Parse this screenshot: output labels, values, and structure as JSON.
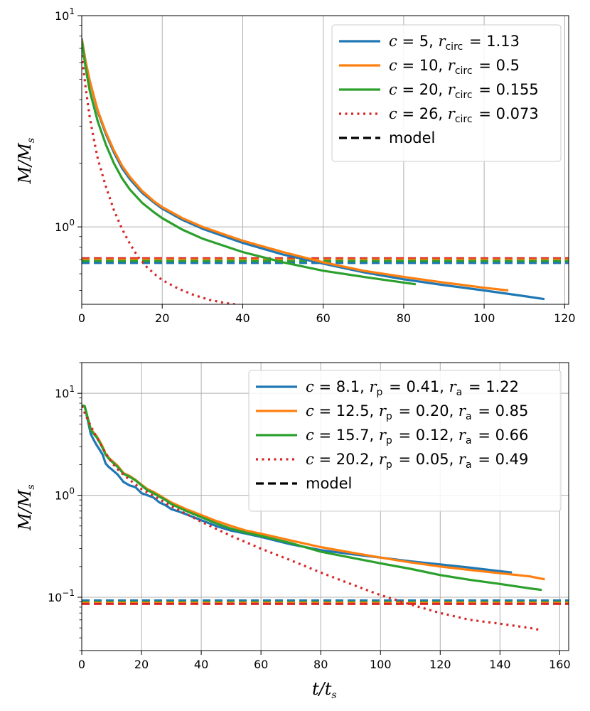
{
  "chart_data": [
    {
      "type": "line",
      "yscale": "log",
      "xlim": [
        0,
        121
      ],
      "ylim": [
        0.43,
        10
      ],
      "x_ticks": [
        0,
        20,
        40,
        60,
        80,
        100,
        120
      ],
      "y_ticks": [
        {
          "value": 1,
          "label": "10^0"
        },
        {
          "value": 10,
          "label": "10^1"
        }
      ],
      "xlabel": "",
      "ylabel": "M/M_s",
      "grid": true,
      "legend_position": "top-right",
      "series": [
        {
          "name": "c = 5, r_circ = 1.13",
          "color": "#1f77b4",
          "style": "solid",
          "x": [
            0,
            1,
            2,
            4,
            6,
            8,
            10,
            12,
            15,
            18,
            20,
            25,
            30,
            40,
            50,
            60,
            70,
            80,
            90,
            100,
            105,
            110,
            115
          ],
          "y": [
            7.8,
            6.0,
            4.9,
            3.5,
            2.75,
            2.25,
            1.9,
            1.68,
            1.45,
            1.3,
            1.22,
            1.08,
            0.98,
            0.84,
            0.74,
            0.67,
            0.61,
            0.565,
            0.53,
            0.5,
            0.485,
            0.47,
            0.455
          ]
        },
        {
          "name": "c = 10, r_circ = 0.5",
          "color": "#ff7f0e",
          "style": "solid",
          "x": [
            0,
            1,
            2,
            4,
            6,
            8,
            10,
            12,
            15,
            18,
            20,
            25,
            30,
            40,
            50,
            60,
            70,
            80,
            90,
            100,
            106
          ],
          "y": [
            7.7,
            6.0,
            4.9,
            3.55,
            2.8,
            2.3,
            1.95,
            1.72,
            1.48,
            1.32,
            1.24,
            1.1,
            1.0,
            0.86,
            0.76,
            0.68,
            0.62,
            0.58,
            0.545,
            0.515,
            0.5
          ]
        },
        {
          "name": "c = 20, r_circ = 0.155",
          "color": "#2ca02c",
          "style": "solid",
          "x": [
            0,
            1,
            2,
            4,
            6,
            8,
            10,
            12,
            15,
            18,
            20,
            25,
            30,
            40,
            50,
            60,
            70,
            80,
            83
          ],
          "y": [
            7.6,
            5.6,
            4.4,
            3.15,
            2.45,
            2.0,
            1.7,
            1.5,
            1.3,
            1.17,
            1.1,
            0.97,
            0.88,
            0.76,
            0.68,
            0.62,
            0.58,
            0.545,
            0.535
          ]
        },
        {
          "name": "c = 26, r_circ = 0.073",
          "color": "#d62728",
          "style": "dotted",
          "x": [
            0,
            1,
            2,
            3,
            4,
            6,
            8,
            10,
            12,
            14,
            16,
            18,
            20,
            24,
            28,
            32,
            36,
            40,
            44
          ],
          "y": [
            6.5,
            4.5,
            3.3,
            2.6,
            2.1,
            1.55,
            1.2,
            0.98,
            0.83,
            0.72,
            0.65,
            0.6,
            0.56,
            0.51,
            0.475,
            0.45,
            0.435,
            0.425,
            0.418
          ]
        },
        {
          "name": "model",
          "color": "#000000",
          "style": "dashed",
          "x": [],
          "y": []
        }
      ],
      "model_lines": [
        {
          "color": "#d62728",
          "y": 0.71
        },
        {
          "color": "#ff7f0e",
          "y": 0.7
        },
        {
          "color": "#2ca02c",
          "y": 0.69
        },
        {
          "color": "#1f77b4",
          "y": 0.675
        }
      ]
    },
    {
      "type": "line",
      "yscale": "log",
      "xlim": [
        0,
        163
      ],
      "ylim": [
        0.03,
        20
      ],
      "x_ticks": [
        0,
        20,
        40,
        60,
        80,
        100,
        120,
        140,
        160
      ],
      "y_ticks": [
        {
          "value": 0.1,
          "label": "10^-1"
        },
        {
          "value": 1,
          "label": "10^0"
        },
        {
          "value": 10,
          "label": "10^1"
        }
      ],
      "xlabel": "t/t_s",
      "ylabel": "M/M_s",
      "grid": true,
      "legend_position": "top-right",
      "series": [
        {
          "name": "c = 8.1, r_p = 0.41, r_a = 1.22",
          "color": "#1f77b4",
          "style": "solid",
          "x": [
            0,
            1,
            2,
            3,
            4,
            5,
            6,
            7,
            8,
            9,
            10,
            12,
            14,
            16,
            18,
            20,
            22,
            24,
            26,
            28,
            30,
            32,
            35,
            40,
            45,
            50,
            55,
            60,
            70,
            80,
            90,
            100,
            110,
            120,
            130,
            140,
            144
          ],
          "y": [
            7.5,
            7.4,
            5.5,
            4.0,
            3.5,
            3.1,
            2.8,
            2.5,
            2.05,
            1.9,
            1.8,
            1.6,
            1.35,
            1.25,
            1.2,
            1.05,
            1.0,
            0.95,
            0.85,
            0.8,
            0.73,
            0.7,
            0.65,
            0.57,
            0.5,
            0.45,
            0.42,
            0.39,
            0.33,
            0.29,
            0.265,
            0.245,
            0.225,
            0.21,
            0.195,
            0.18,
            0.175
          ]
        },
        {
          "name": "c = 12.5, r_p = 0.20, r_a = 0.85",
          "color": "#ff7f0e",
          "style": "solid",
          "x": [
            0,
            1,
            2,
            3,
            4,
            5,
            6,
            7,
            8,
            9,
            10,
            12,
            14,
            16,
            18,
            20,
            22,
            24,
            26,
            28,
            30,
            32,
            35,
            40,
            45,
            50,
            55,
            60,
            70,
            80,
            90,
            100,
            110,
            120,
            130,
            140,
            150,
            155
          ],
          "y": [
            7.6,
            7.5,
            5.8,
            4.5,
            4.1,
            3.8,
            3.4,
            3.0,
            2.55,
            2.35,
            2.2,
            1.95,
            1.65,
            1.55,
            1.42,
            1.27,
            1.15,
            1.08,
            1.0,
            0.92,
            0.85,
            0.8,
            0.73,
            0.64,
            0.56,
            0.5,
            0.45,
            0.42,
            0.36,
            0.31,
            0.275,
            0.245,
            0.22,
            0.2,
            0.185,
            0.172,
            0.16,
            0.15
          ]
        },
        {
          "name": "c = 15.7, r_p = 0.12, r_a = 0.66",
          "color": "#2ca02c",
          "style": "solid",
          "x": [
            0,
            1,
            2,
            3,
            4,
            5,
            6,
            7,
            8,
            9,
            10,
            12,
            14,
            16,
            18,
            20,
            22,
            24,
            26,
            28,
            30,
            32,
            35,
            40,
            45,
            50,
            55,
            60,
            70,
            80,
            90,
            100,
            110,
            120,
            130,
            140,
            150,
            154
          ],
          "y": [
            7.6,
            7.5,
            5.7,
            4.4,
            4.0,
            3.7,
            3.3,
            2.9,
            2.5,
            2.3,
            2.15,
            1.9,
            1.62,
            1.52,
            1.4,
            1.25,
            1.12,
            1.05,
            0.97,
            0.9,
            0.82,
            0.77,
            0.7,
            0.61,
            0.53,
            0.47,
            0.43,
            0.4,
            0.34,
            0.28,
            0.245,
            0.215,
            0.19,
            0.165,
            0.148,
            0.135,
            0.122,
            0.118
          ]
        },
        {
          "name": "c = 20.2, r_p = 0.05, r_a = 0.49",
          "color": "#d62728",
          "style": "dotted",
          "x": [
            0,
            2,
            4,
            6,
            8,
            10,
            12,
            15,
            20,
            25,
            30,
            40,
            50,
            60,
            70,
            80,
            90,
            100,
            110,
            120,
            130,
            140,
            150,
            153
          ],
          "y": [
            7.5,
            5.5,
            4.2,
            3.3,
            2.6,
            2.1,
            1.8,
            1.5,
            1.15,
            0.95,
            0.78,
            0.55,
            0.4,
            0.3,
            0.23,
            0.175,
            0.135,
            0.105,
            0.085,
            0.07,
            0.06,
            0.055,
            0.05,
            0.048
          ]
        },
        {
          "name": "model",
          "color": "#000000",
          "style": "dashed",
          "x": [],
          "y": []
        }
      ],
      "model_lines": [
        {
          "color": "#1f77b4",
          "y": 0.093
        },
        {
          "color": "#2ca02c",
          "y": 0.09
        },
        {
          "color": "#ff7f0e",
          "y": 0.088
        },
        {
          "color": "#d62728",
          "y": 0.086
        }
      ]
    }
  ]
}
